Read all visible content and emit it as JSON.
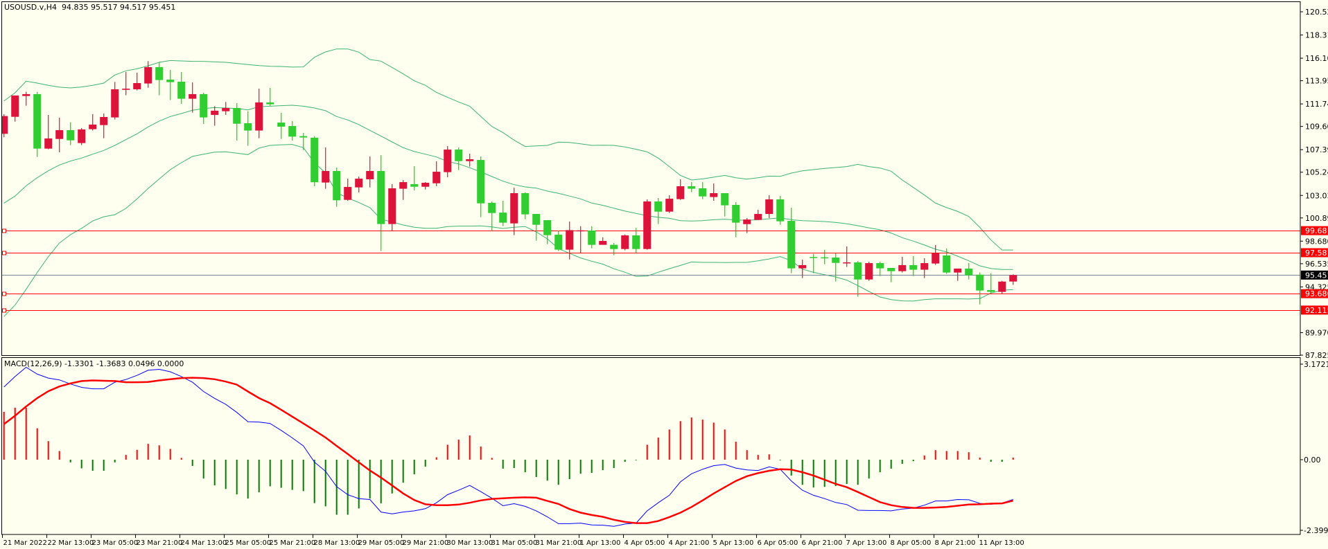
{
  "header": {
    "title": "USOUSD.v,H4  94.835 95.517 94.517 95.451"
  },
  "macd_header": {
    "title": "MACD(12,26,9) -1.3301 -1.3683 0.0496 0.0000"
  },
  "colors": {
    "background": "#FFFFF0",
    "bull": "#DC143C",
    "bear": "#32CD32",
    "bands": "#3CB371",
    "level_line": "#FF0000",
    "bid_line": "#778899",
    "macd_line": "#0000FF",
    "signal_line": "#FF0000",
    "hist_pos": "#FF0000",
    "hist_neg": "#008000"
  },
  "chart_data": [
    {
      "type": "candlestick",
      "title": "USOUSD.v,H4",
      "ylim": [
        87.825,
        120.52
      ],
      "y_ticks": [
        "120.520",
        "118.310",
        "116.100",
        "113.955",
        "111.745",
        "109.600",
        "107.390",
        "105.245",
        "103.035",
        "100.890",
        "98.680",
        "96.535",
        "94.325",
        "89.970",
        "87.825"
      ],
      "x_labels": [
        "21 Mar 2022",
        "22 Mar 13:00",
        "23 Mar 05:00",
        "23 Mar 21:00",
        "24 Mar 13:00",
        "25 Mar 05:00",
        "25 Mar 21:00",
        "28 Mar 13:00",
        "29 Mar 05:00",
        "29 Mar 21:00",
        "30 Mar 13:00",
        "31 Mar 05:00",
        "31 Mar 21:00",
        "1 Apr 13:00",
        "4 Apr 05:00",
        "4 Apr 21:00",
        "5 Apr 13:00",
        "6 Apr 05:00",
        "6 Apr 21:00",
        "7 Apr 13:00",
        "8 Apr 05:00",
        "8 Apr 21:00",
        "11 Apr 13:00"
      ],
      "bid": {
        "value": 95.451,
        "label": "95.451"
      },
      "levels": [
        {
          "value": 99.681,
          "label": "99.681"
        },
        {
          "value": 97.581,
          "label": "97.581"
        },
        {
          "value": 93.68,
          "label": "93.680"
        },
        {
          "value": 92.115,
          "label": "92.115"
        }
      ],
      "ohlc": [
        [
          108.9,
          110.77,
          108.57,
          110.59
        ],
        [
          110.52,
          112.55,
          110.06,
          112.55
        ],
        [
          112.5,
          112.9,
          111.58,
          112.68
        ],
        [
          112.68,
          112.9,
          106.7,
          107.49
        ],
        [
          107.49,
          110.7,
          107.43,
          108.46
        ],
        [
          108.41,
          110.44,
          107.14,
          109.25
        ],
        [
          109.25,
          110.0,
          107.82,
          108.28
        ],
        [
          108.02,
          109.45,
          107.82,
          109.32
        ],
        [
          109.34,
          110.77,
          109.21,
          109.78
        ],
        [
          109.73,
          110.83,
          108.48,
          110.5
        ],
        [
          110.46,
          113.84,
          110.26,
          113.14
        ],
        [
          113.09,
          114.79,
          112.57,
          113.2
        ],
        [
          113.14,
          114.72,
          113.03,
          113.73
        ],
        [
          113.69,
          115.82,
          113.29,
          115.25
        ],
        [
          115.25,
          115.75,
          112.57,
          114.02
        ],
        [
          114.06,
          114.98,
          112.11,
          113.82
        ],
        [
          113.86,
          114.79,
          111.75,
          112.24
        ],
        [
          112.24,
          113.8,
          110.92,
          112.68
        ],
        [
          112.68,
          112.81,
          109.84,
          110.46
        ],
        [
          110.7,
          111.53,
          109.67,
          111.1
        ],
        [
          111.05,
          111.93,
          110.7,
          111.36
        ],
        [
          111.36,
          111.82,
          108.26,
          109.86
        ],
        [
          109.91,
          111.05,
          107.76,
          109.21
        ],
        [
          109.21,
          113.2,
          108.48,
          111.89
        ],
        [
          111.89,
          113.27,
          111.56,
          111.71
        ],
        [
          109.97,
          110.9,
          108.41,
          109.58
        ],
        [
          109.64,
          110.11,
          108.26,
          108.63
        ],
        [
          108.68,
          108.99,
          107.36,
          108.55
        ],
        [
          108.53,
          108.68,
          103.91,
          104.29
        ],
        [
          104.26,
          107.6,
          103.67,
          105.36
        ],
        [
          105.36,
          105.69,
          101.95,
          102.57
        ],
        [
          102.61,
          104.63,
          102.52,
          103.84
        ],
        [
          103.8,
          104.83,
          103.32,
          104.63
        ],
        [
          104.57,
          106.74,
          103.8,
          105.36
        ],
        [
          105.36,
          106.87,
          97.74,
          100.31
        ],
        [
          100.31,
          104.11,
          99.64,
          103.71
        ],
        [
          103.67,
          104.5,
          102.61,
          104.3
        ],
        [
          104.11,
          105.82,
          103.51,
          103.86
        ],
        [
          103.86,
          104.3,
          103.6,
          104.24
        ],
        [
          104.19,
          106.28,
          103.91,
          105.29
        ],
        [
          105.25,
          107.73,
          104.76,
          107.4
        ],
        [
          107.4,
          107.6,
          105.45,
          106.3
        ],
        [
          106.3,
          107.01,
          105.78,
          106.48
        ],
        [
          106.41,
          106.74,
          100.96,
          102.28
        ],
        [
          102.33,
          102.46,
          99.64,
          101.36
        ],
        [
          101.4,
          102.52,
          100.11,
          100.44
        ],
        [
          100.37,
          103.77,
          99.25,
          103.25
        ],
        [
          103.25,
          103.32,
          100.77,
          101.23
        ],
        [
          101.27,
          101.27,
          98.72,
          100.24
        ],
        [
          100.68,
          100.68,
          98.39,
          99.25
        ],
        [
          99.3,
          99.69,
          97.74,
          97.87
        ],
        [
          97.87,
          100.55,
          96.94,
          99.73
        ],
        [
          99.65,
          100.11,
          97.54,
          99.71
        ],
        [
          99.69,
          100.11,
          98.0,
          98.33
        ],
        [
          98.33,
          99.05,
          98.33,
          98.7
        ],
        [
          98.33,
          98.5,
          97.34,
          97.93
        ],
        [
          97.93,
          99.32,
          97.8,
          99.23
        ],
        [
          99.23,
          99.95,
          97.54,
          97.93
        ],
        [
          97.93,
          102.66,
          97.87,
          102.46
        ],
        [
          102.46,
          102.79,
          100.31,
          101.49
        ],
        [
          101.49,
          103.05,
          101.36,
          102.72
        ],
        [
          102.68,
          104.57,
          102.61,
          103.91
        ],
        [
          103.91,
          104.3,
          103.34,
          103.67
        ],
        [
          103.71,
          104.3,
          102.68,
          102.94
        ],
        [
          102.88,
          104.17,
          102.52,
          103.25
        ],
        [
          103.25,
          103.25,
          101.03,
          102.09
        ],
        [
          102.13,
          102.39,
          99.05,
          100.44
        ],
        [
          100.3,
          100.88,
          99.45,
          100.74
        ],
        [
          100.7,
          101.67,
          100.7,
          101.27
        ],
        [
          101.27,
          103.05,
          100.88,
          102.66
        ],
        [
          102.66,
          102.99,
          100.24,
          100.57
        ],
        [
          100.61,
          101.87,
          95.63,
          96.09
        ],
        [
          96.09,
          96.92,
          95.16,
          96.4
        ],
        [
          97.17,
          97.47,
          95.63,
          97.08
        ],
        [
          97.14,
          97.85,
          96.48,
          97.11
        ],
        [
          97.12,
          97.52,
          94.84,
          96.61
        ],
        [
          96.61,
          98.18,
          96.22,
          96.66
        ],
        [
          96.66,
          96.79,
          93.39,
          95.03
        ],
        [
          95.03,
          96.72,
          94.9,
          96.59
        ],
        [
          96.59,
          96.72,
          95.36,
          96.09
        ],
        [
          96.13,
          96.13,
          94.77,
          95.82
        ],
        [
          95.82,
          97.19,
          95.69,
          96.4
        ],
        [
          96.4,
          97.25,
          95.36,
          95.96
        ],
        [
          95.96,
          97.05,
          95.16,
          96.59
        ],
        [
          96.55,
          98.31,
          96.42,
          97.52
        ],
        [
          97.32,
          97.98,
          95.56,
          95.69
        ],
        [
          95.69,
          96.07,
          94.9,
          96.07
        ],
        [
          96.07,
          96.59,
          95.03,
          95.43
        ],
        [
          95.49,
          95.69,
          92.66,
          93.98
        ],
        [
          94.02,
          95.63,
          93.67,
          93.85
        ],
        [
          93.85,
          94.9,
          93.65,
          94.83
        ],
        [
          94.835,
          95.517,
          94.517,
          95.451
        ]
      ],
      "bollinger": {
        "upper": [
          112.02,
          112.81,
          113.91,
          113.73,
          113.51,
          113.34,
          113.27,
          113.36,
          113.51,
          113.73,
          114.5,
          114.9,
          115.09,
          115.38,
          115.71,
          115.88,
          115.84,
          115.8,
          115.8,
          115.75,
          115.71,
          115.6,
          115.49,
          115.4,
          115.33,
          115.31,
          115.25,
          115.27,
          116.19,
          116.7,
          116.98,
          116.98,
          116.68,
          115.97,
          115.82,
          115.22,
          114.61,
          113.95,
          113.51,
          112.85,
          112.37,
          111.93,
          111.53,
          110.55,
          109.6,
          109.01,
          108.3,
          107.69,
          107.75,
          107.8,
          108.11,
          108.08,
          107.95,
          107.8,
          107.82,
          107.8,
          107.65,
          107.43,
          107.18,
          106.59,
          105.78,
          104.94,
          104.5,
          104.61,
          104.77,
          104.94,
          104.72,
          104.59,
          104.72,
          104.87,
          104.85,
          105.16,
          105.38,
          105.49,
          105.6,
          105.69,
          105.78,
          105.99,
          105.78,
          105.64,
          105.34,
          104.5,
          103.8,
          103.07,
          102.3,
          101.87,
          101.51,
          101.03,
          99.99,
          98.79,
          97.84,
          97.84
        ],
        "middle": [
          102.3,
          102.97,
          103.95,
          104.72,
          105.38,
          105.93,
          106.31,
          106.59,
          106.96,
          107.32,
          107.8,
          108.35,
          108.9,
          109.56,
          110.11,
          110.55,
          110.83,
          111.14,
          111.31,
          111.4,
          111.36,
          111.31,
          111.18,
          111.49,
          111.53,
          111.58,
          111.62,
          111.53,
          111.36,
          111.1,
          110.55,
          110.22,
          109.78,
          109.23,
          108.68,
          108.13,
          107.58,
          107.21,
          106.96,
          106.7,
          106.26,
          106.04,
          105.67,
          105.27,
          104.83,
          104.39,
          104.06,
          103.84,
          103.73,
          103.45,
          103.23,
          102.97,
          102.7,
          102.31,
          102.09,
          101.82,
          101.54,
          101.32,
          101.1,
          100.95,
          100.86,
          100.63,
          100.59,
          100.63,
          100.72,
          100.77,
          100.7,
          100.66,
          100.72,
          100.81,
          100.9,
          100.72,
          100.63,
          100.59,
          100.55,
          100.46,
          100.33,
          100.15,
          99.95,
          99.76,
          99.45,
          99.01,
          98.68,
          98.31,
          97.91,
          97.65,
          97.25,
          96.81,
          96.33,
          96.07,
          95.98,
          95.98
        ],
        "lower": [
          91.5,
          92.6,
          94.1,
          95.7,
          97.2,
          98.5,
          99.3,
          99.9,
          100.6,
          101.0,
          101.2,
          101.8,
          102.7,
          103.7,
          104.6,
          105.49,
          106.15,
          106.75,
          106.96,
          107.16,
          107.19,
          107.05,
          106.92,
          107.54,
          107.8,
          107.86,
          107.89,
          107.58,
          106.15,
          105.16,
          103.3,
          102.79,
          102.35,
          101.87,
          100.77,
          100.5,
          100.22,
          100.0,
          99.91,
          99.91,
          100.07,
          100.11,
          100.11,
          100.13,
          100.04,
          99.89,
          100.0,
          100.07,
          99.56,
          98.9,
          97.96,
          97.52,
          97.08,
          96.77,
          96.49,
          96.05,
          95.72,
          95.32,
          95.36,
          95.72,
          96.06,
          96.37,
          96.7,
          96.66,
          96.66,
          96.64,
          96.66,
          96.66,
          96.81,
          96.99,
          97.21,
          96.81,
          96.02,
          95.71,
          95.49,
          95.27,
          94.97,
          94.44,
          93.89,
          93.36,
          93.12,
          92.99,
          92.97,
          93.12,
          93.19,
          93.19,
          93.19,
          93.17,
          93.21,
          93.74,
          94.0,
          94.07
        ]
      }
    },
    {
      "type": "macd",
      "title": "MACD(12,26,9)",
      "ylim": [
        -2.399,
        3.1721
      ],
      "y_ticks": [
        "3.1721",
        "0.00",
        "-2.399"
      ],
      "y_tick_values": [
        3.1721,
        0,
        -2.399
      ],
      "macd": [
        2.43,
        2.78,
        3.09,
        2.86,
        2.73,
        2.67,
        2.53,
        2.42,
        2.37,
        2.37,
        2.59,
        2.68,
        2.82,
        2.99,
        3.02,
        2.94,
        2.78,
        2.59,
        2.28,
        2.05,
        1.85,
        1.58,
        1.27,
        1.26,
        1.21,
        0.98,
        0.73,
        0.46,
        -0.08,
        -0.39,
        -0.9,
        -1.17,
        -1.3,
        -1.33,
        -1.75,
        -1.81,
        -1.75,
        -1.71,
        -1.64,
        -1.44,
        -1.17,
        -1.02,
        -0.86,
        -1.07,
        -1.29,
        -1.54,
        -1.47,
        -1.56,
        -1.71,
        -1.91,
        -2.14,
        -2.14,
        -2.12,
        -2.18,
        -2.19,
        -2.23,
        -2.15,
        -2.12,
        -1.71,
        -1.44,
        -1.19,
        -0.74,
        -0.47,
        -0.32,
        -0.2,
        -0.16,
        -0.28,
        -0.34,
        -0.36,
        -0.24,
        -0.32,
        -0.71,
        -1.02,
        -1.19,
        -1.3,
        -1.43,
        -1.5,
        -1.69,
        -1.7,
        -1.7,
        -1.71,
        -1.65,
        -1.62,
        -1.52,
        -1.38,
        -1.38,
        -1.33,
        -1.34,
        -1.46,
        -1.49,
        -1.45,
        -1.33
      ],
      "signal": [
        1.19,
        1.47,
        1.78,
        2.06,
        2.29,
        2.45,
        2.55,
        2.63,
        2.65,
        2.64,
        2.63,
        2.59,
        2.59,
        2.6,
        2.65,
        2.69,
        2.73,
        2.74,
        2.73,
        2.69,
        2.61,
        2.51,
        2.28,
        2.06,
        1.89,
        1.67,
        1.44,
        1.21,
        0.98,
        0.74,
        0.46,
        0.19,
        -0.09,
        -0.36,
        -0.6,
        -0.86,
        -1.13,
        -1.35,
        -1.49,
        -1.52,
        -1.52,
        -1.5,
        -1.44,
        -1.36,
        -1.31,
        -1.29,
        -1.27,
        -1.26,
        -1.27,
        -1.38,
        -1.48,
        -1.65,
        -1.77,
        -1.85,
        -1.91,
        -2.01,
        -2.08,
        -2.12,
        -2.12,
        -2.05,
        -1.92,
        -1.77,
        -1.58,
        -1.36,
        -1.13,
        -0.92,
        -0.71,
        -0.55,
        -0.45,
        -0.37,
        -0.32,
        -0.33,
        -0.42,
        -0.53,
        -0.67,
        -0.81,
        -0.92,
        -1.08,
        -1.25,
        -1.42,
        -1.52,
        -1.58,
        -1.61,
        -1.61,
        -1.6,
        -1.58,
        -1.54,
        -1.5,
        -1.49,
        -1.47,
        -1.46,
        -1.37
      ],
      "histogram": [
        1.6,
        1.74,
        1.74,
        1.05,
        0.62,
        0.29,
        -0.09,
        -0.29,
        -0.37,
        -0.37,
        -0.09,
        0.16,
        0.33,
        0.53,
        0.48,
        0.36,
        0.06,
        -0.21,
        -0.63,
        -0.86,
        -0.98,
        -1.16,
        -1.3,
        -1.09,
        -0.89,
        -0.94,
        -1.01,
        -1.05,
        -1.45,
        -1.56,
        -1.84,
        -1.84,
        -1.63,
        -1.3,
        -1.46,
        -1.13,
        -0.77,
        -0.49,
        -0.23,
        0.08,
        0.5,
        0.67,
        0.81,
        0.44,
        0.06,
        -0.3,
        -0.28,
        -0.42,
        -0.58,
        -0.7,
        -0.84,
        -0.65,
        -0.47,
        -0.44,
        -0.35,
        -0.28,
        -0.07,
        -0.02,
        0.5,
        0.74,
        1.01,
        1.29,
        1.41,
        1.34,
        1.24,
        1.01,
        0.6,
        0.32,
        0.16,
        0.18,
        -0.02,
        -0.53,
        -0.84,
        -0.93,
        -0.91,
        -0.88,
        -0.81,
        -0.84,
        -0.63,
        -0.42,
        -0.3,
        -0.14,
        -0.05,
        0.14,
        0.32,
        0.29,
        0.29,
        0.25,
        0.07,
        -0.07,
        -0.07,
        0.07
      ]
    }
  ]
}
